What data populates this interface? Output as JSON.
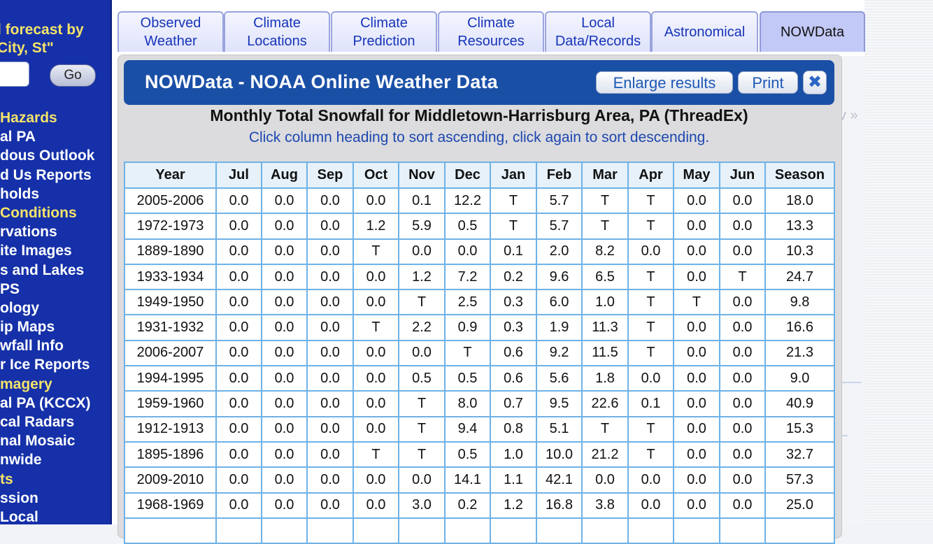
{
  "sidebar": {
    "forecast_line1": "l forecast by",
    "forecast_line2": "City, St\"",
    "go_label": "Go",
    "items": [
      {
        "label": "Hazards",
        "color": "#f4e36a"
      },
      {
        "label": "al PA",
        "color": "#ffffff"
      },
      {
        "label": "dous Outlook",
        "color": "#ffffff"
      },
      {
        "label": "d Us Reports",
        "color": "#ffffff"
      },
      {
        "label": "holds",
        "color": "#ffffff"
      },
      {
        "label": "Conditions",
        "color": "#f4e36a"
      },
      {
        "label": "rvations",
        "color": "#ffffff"
      },
      {
        "label": "ite Images",
        "color": "#ffffff"
      },
      {
        "label": "s and Lakes",
        "color": "#ffffff"
      },
      {
        "label": "PS",
        "color": "#ffffff"
      },
      {
        "label": "ology",
        "color": "#ffffff"
      },
      {
        "label": "ip Maps",
        "color": "#ffffff"
      },
      {
        "label": "wfall Info",
        "color": "#ffffff"
      },
      {
        "label": "r Ice Reports",
        "color": "#ffffff"
      },
      {
        "label": "magery",
        "color": "#f4e36a"
      },
      {
        "label": "al PA (KCCX)",
        "color": "#ffffff"
      },
      {
        "label": "cal Radars",
        "color": "#ffffff"
      },
      {
        "label": "nal Mosaic",
        "color": "#ffffff"
      },
      {
        "label": "nwide",
        "color": "#ffffff"
      },
      {
        "label": "ts",
        "color": "#f4e36a"
      },
      {
        "label": "ssion",
        "color": "#ffffff"
      },
      {
        "label": "Local",
        "color": "#ffffff"
      }
    ]
  },
  "tabs": [
    {
      "line1": "Observed",
      "line2": "Weather",
      "active": false
    },
    {
      "line1": "Climate",
      "line2": "Locations",
      "active": false
    },
    {
      "line1": "Climate",
      "line2": "Prediction",
      "active": false
    },
    {
      "line1": "Climate",
      "line2": "Resources",
      "active": false
    },
    {
      "line1": "Local",
      "line2": "Data/Records",
      "active": false
    },
    {
      "line1": "Astronomical",
      "line2": "",
      "active": false
    },
    {
      "line1": "NOWData",
      "line2": "",
      "active": true
    }
  ],
  "header": {
    "title": "NOWData - NOAA Online Weather Data",
    "enlarge_label": "Enlarge results",
    "print_label": "Print",
    "close_icon": "✖"
  },
  "report": {
    "title": "Monthly Total Snowfall for Middletown-Harrisburg Area, PA (ThreadEx)",
    "subtitle": "Click column heading to sort ascending, click again to sort descending."
  },
  "table": {
    "columns": [
      "Year",
      "Jul",
      "Aug",
      "Sep",
      "Oct",
      "Nov",
      "Dec",
      "Jan",
      "Feb",
      "Mar",
      "Apr",
      "May",
      "Jun",
      "Season"
    ],
    "rows": [
      [
        "2005-2006",
        "0.0",
        "0.0",
        "0.0",
        "0.0",
        "0.1",
        "12.2",
        "T",
        "5.7",
        "T",
        "T",
        "0.0",
        "0.0",
        "18.0"
      ],
      [
        "1972-1973",
        "0.0",
        "0.0",
        "0.0",
        "1.2",
        "5.9",
        "0.5",
        "T",
        "5.7",
        "T",
        "T",
        "0.0",
        "0.0",
        "13.3"
      ],
      [
        "1889-1890",
        "0.0",
        "0.0",
        "0.0",
        "T",
        "0.0",
        "0.0",
        "0.1",
        "2.0",
        "8.2",
        "0.0",
        "0.0",
        "0.0",
        "10.3"
      ],
      [
        "1933-1934",
        "0.0",
        "0.0",
        "0.0",
        "0.0",
        "1.2",
        "7.2",
        "0.2",
        "9.6",
        "6.5",
        "T",
        "0.0",
        "T",
        "24.7"
      ],
      [
        "1949-1950",
        "0.0",
        "0.0",
        "0.0",
        "0.0",
        "T",
        "2.5",
        "0.3",
        "6.0",
        "1.0",
        "T",
        "T",
        "0.0",
        "9.8"
      ],
      [
        "1931-1932",
        "0.0",
        "0.0",
        "0.0",
        "T",
        "2.2",
        "0.9",
        "0.3",
        "1.9",
        "11.3",
        "T",
        "0.0",
        "0.0",
        "16.6"
      ],
      [
        "2006-2007",
        "0.0",
        "0.0",
        "0.0",
        "0.0",
        "0.0",
        "T",
        "0.6",
        "9.2",
        "11.5",
        "T",
        "0.0",
        "0.0",
        "21.3"
      ],
      [
        "1994-1995",
        "0.0",
        "0.0",
        "0.0",
        "0.0",
        "0.5",
        "0.5",
        "0.6",
        "5.6",
        "1.8",
        "0.0",
        "0.0",
        "0.0",
        "9.0"
      ],
      [
        "1959-1960",
        "0.0",
        "0.0",
        "0.0",
        "0.0",
        "T",
        "8.0",
        "0.7",
        "9.5",
        "22.6",
        "0.1",
        "0.0",
        "0.0",
        "40.9"
      ],
      [
        "1912-1913",
        "0.0",
        "0.0",
        "0.0",
        "0.0",
        "T",
        "9.4",
        "0.8",
        "5.1",
        "T",
        "T",
        "0.0",
        "0.0",
        "15.3"
      ],
      [
        "1895-1896",
        "0.0",
        "0.0",
        "0.0",
        "T",
        "T",
        "0.5",
        "1.0",
        "10.0",
        "21.2",
        "T",
        "0.0",
        "0.0",
        "32.7"
      ],
      [
        "2009-2010",
        "0.0",
        "0.0",
        "0.0",
        "0.0",
        "0.0",
        "14.1",
        "1.1",
        "42.1",
        "0.0",
        "0.0",
        "0.0",
        "0.0",
        "57.3"
      ],
      [
        "1968-1969",
        "0.0",
        "0.0",
        "0.0",
        "0.0",
        "3.0",
        "0.2",
        "1.2",
        "16.8",
        "3.8",
        "0.0",
        "0.0",
        "0.0",
        "25.0"
      ],
      [
        "",
        "",
        "",
        "",
        "",
        "",
        "",
        "",
        "",
        "",
        "",
        "",
        "",
        ""
      ]
    ]
  },
  "background": {
    "faint_arrow": "v »"
  }
}
